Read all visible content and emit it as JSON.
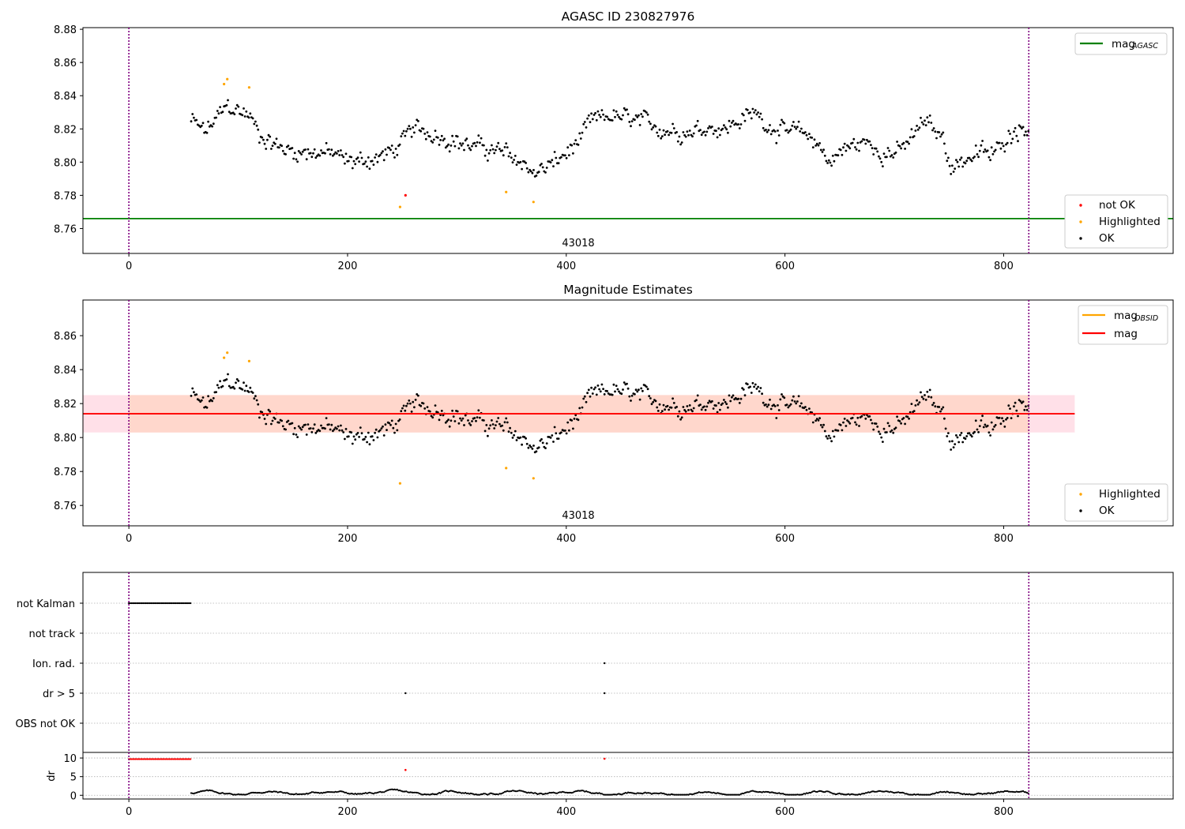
{
  "colors": {
    "ok": "#000000",
    "highlighted": "#ffa500",
    "not_ok": "#ff0000",
    "agasc_line": "#008000",
    "obsid_line": "#ffa500",
    "mag_line": "#ff0000",
    "band_fill": "#ffd7cc",
    "band_fill_edge": "#ffe0e8",
    "obs_marker": "#800080",
    "grid": "#b0b0b0"
  },
  "chart_data": [
    {
      "type": "scatter",
      "title": "AGASC ID 230827976",
      "xlim": [
        -42,
        955
      ],
      "ylim": [
        8.745,
        8.881
      ],
      "xticks": [
        0,
        200,
        400,
        600,
        800
      ],
      "yticks": [
        8.76,
        8.78,
        8.8,
        8.82,
        8.84,
        8.86,
        8.88
      ],
      "xticklabels": [
        "0",
        "200",
        "400",
        "600",
        "800"
      ],
      "yticklabels": [
        "8.76",
        "8.78",
        "8.80",
        "8.82",
        "8.84",
        "8.86",
        "8.88"
      ],
      "obs_boundaries": [
        0,
        823
      ],
      "obs_label": "43018",
      "hlines": [
        {
          "name": "mag_AGASC",
          "y": 8.766,
          "x_range": [
            -42,
            955
          ],
          "color": "#008000"
        }
      ],
      "legends": {
        "upper_right": {
          "lines": [
            {
              "main": "mag",
              "sub": "AGASC",
              "color": "#008000"
            }
          ]
        },
        "lower_right": {
          "markers": [
            {
              "label": "not OK",
              "color": "#ff0000"
            },
            {
              "label": "Highlighted",
              "color": "#ffa500"
            },
            {
              "label": "OK",
              "color": "#000000"
            }
          ]
        }
      },
      "series": [
        {
          "name": "OK",
          "color": "#000000",
          "source": "mag_series"
        },
        {
          "name": "Highlighted",
          "color": "#ffa500",
          "points": [
            [
              87,
              8.847
            ],
            [
              90,
              8.85
            ],
            [
              110,
              8.845
            ],
            [
              248,
              8.773
            ],
            [
              345,
              8.782
            ],
            [
              370,
              8.776
            ]
          ]
        },
        {
          "name": "not OK",
          "color": "#ff0000",
          "points": [
            [
              253,
              8.78
            ]
          ]
        }
      ]
    },
    {
      "type": "scatter",
      "title": "Magnitude Estimates",
      "xlim": [
        -42,
        955
      ],
      "ylim": [
        8.748,
        8.881
      ],
      "xticks": [
        0,
        200,
        400,
        600,
        800
      ],
      "yticks": [
        8.76,
        8.78,
        8.8,
        8.82,
        8.84,
        8.86
      ],
      "xticklabels": [
        "0",
        "200",
        "400",
        "600",
        "800"
      ],
      "yticklabels": [
        "8.76",
        "8.78",
        "8.80",
        "8.82",
        "8.84",
        "8.86"
      ],
      "obs_boundaries": [
        0,
        823
      ],
      "obs_label": "43018",
      "band": {
        "y_low": 8.803,
        "y_high": 8.825,
        "x_range": [
          -42,
          865
        ]
      },
      "hlines": [
        {
          "name": "mag_OBSID",
          "y": 8.814,
          "x_range": [
            -42,
            865
          ],
          "color": "#ffa500"
        },
        {
          "name": "mag",
          "y": 8.814,
          "x_range": [
            -42,
            865
          ],
          "color": "#ff0000"
        }
      ],
      "legends": {
        "upper_right": {
          "lines": [
            {
              "main": "mag",
              "sub": "OBSID",
              "color": "#ffa500"
            },
            {
              "main": "mag",
              "sub": "",
              "color": "#ff0000"
            }
          ]
        },
        "lower_right": {
          "markers": [
            {
              "label": "Highlighted",
              "color": "#ffa500"
            },
            {
              "label": "OK",
              "color": "#000000"
            }
          ]
        }
      },
      "series": [
        {
          "name": "OK",
          "color": "#000000",
          "source": "mag_series"
        },
        {
          "name": "Highlighted",
          "color": "#ffa500",
          "points": [
            [
              87,
              8.847
            ],
            [
              90,
              8.85
            ],
            [
              110,
              8.845
            ],
            [
              248,
              8.773
            ],
            [
              345,
              8.782
            ],
            [
              370,
              8.776
            ]
          ]
        }
      ]
    },
    {
      "type": "scatter",
      "title": "",
      "xlim": [
        -42,
        955
      ],
      "categories": [
        "not Kalman",
        "not track",
        "Ion. rad.",
        "dr > 5",
        "OBS not OK"
      ],
      "flags": [
        {
          "category": "not Kalman",
          "x_ranges": [
            [
              0,
              57
            ]
          ],
          "x_points": []
        },
        {
          "category": "not track",
          "x_ranges": [],
          "x_points": []
        },
        {
          "category": "Ion. rad.",
          "x_ranges": [],
          "x_points": [
            435
          ]
        },
        {
          "category": "dr > 5",
          "x_ranges": [],
          "x_points": [
            253,
            435
          ]
        },
        {
          "category": "OBS not OK",
          "x_ranges": [],
          "x_points": []
        }
      ],
      "obs_boundaries": [
        0,
        823
      ]
    },
    {
      "type": "scatter",
      "title": "",
      "ylabel": "dr",
      "xlim": [
        -42,
        955
      ],
      "ylim": [
        -1,
        11.5
      ],
      "xticks": [
        0,
        200,
        400,
        600,
        800
      ],
      "yticks": [
        0,
        5,
        10
      ],
      "xticklabels": [
        "0",
        "200",
        "400",
        "600",
        "800"
      ],
      "yticklabels": [
        "0",
        "5",
        "10"
      ],
      "obs_boundaries": [
        0,
        823
      ],
      "red_segment": {
        "x_range": [
          0,
          57
        ],
        "y": 9.7
      },
      "red_points": [
        [
          253,
          6.8
        ],
        [
          435,
          9.8
        ]
      ],
      "black_range": [
        57,
        823
      ]
    }
  ],
  "mag_series": {
    "x_start": 57,
    "x_end": 823,
    "step": 1.2,
    "anchors": [
      [
        57,
        8.825
      ],
      [
        70,
        8.818
      ],
      [
        80,
        8.826
      ],
      [
        90,
        8.834
      ],
      [
        100,
        8.831
      ],
      [
        110,
        8.828
      ],
      [
        120,
        8.816
      ],
      [
        140,
        8.808
      ],
      [
        160,
        8.806
      ],
      [
        180,
        8.806
      ],
      [
        190,
        8.804
      ],
      [
        200,
        8.8
      ],
      [
        215,
        8.801
      ],
      [
        230,
        8.803
      ],
      [
        245,
        8.808
      ],
      [
        260,
        8.82
      ],
      [
        275,
        8.818
      ],
      [
        290,
        8.815
      ],
      [
        310,
        8.81
      ],
      [
        330,
        8.808
      ],
      [
        345,
        8.805
      ],
      [
        360,
        8.8
      ],
      [
        372,
        8.793
      ],
      [
        390,
        8.8
      ],
      [
        400,
        8.805
      ],
      [
        412,
        8.812
      ],
      [
        422,
        8.824
      ],
      [
        440,
        8.828
      ],
      [
        470,
        8.824
      ],
      [
        490,
        8.82
      ],
      [
        510,
        8.818
      ],
      [
        530,
        8.822
      ],
      [
        545,
        8.82
      ],
      [
        558,
        8.825
      ],
      [
        575,
        8.83
      ],
      [
        585,
        8.822
      ],
      [
        600,
        8.818
      ],
      [
        615,
        8.818
      ],
      [
        630,
        8.812
      ],
      [
        640,
        8.8
      ],
      [
        655,
        8.808
      ],
      [
        672,
        8.812
      ],
      [
        690,
        8.806
      ],
      [
        705,
        8.806
      ],
      [
        720,
        8.818
      ],
      [
        728,
        8.825
      ],
      [
        738,
        8.818
      ],
      [
        745,
        8.815
      ],
      [
        752,
        8.797
      ],
      [
        765,
        8.802
      ],
      [
        780,
        8.806
      ],
      [
        790,
        8.804
      ],
      [
        800,
        8.813
      ],
      [
        810,
        8.82
      ],
      [
        823,
        8.822
      ]
    ],
    "noise": 0.006
  }
}
